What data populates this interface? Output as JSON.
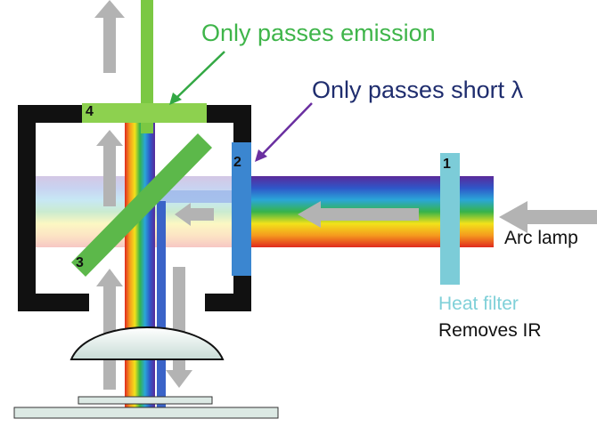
{
  "labels": {
    "callout_emission": "Only passes emission",
    "callout_short": "Only passes short λ",
    "arc_lamp": "Arc lamp",
    "heat_filter": "Heat filter",
    "removes_ir": "Removes IR"
  },
  "element_numbers": {
    "heat_filter": "1",
    "excitation_filter": "2",
    "dichroic_mirror": "3",
    "emission_filter": "4"
  },
  "colors": {
    "emission_text": "#3fb54a",
    "short_pass_text": "#1f2d6e",
    "heat_filter_text": "#7fd0d8",
    "body_text": "#111111",
    "housing": "#111111",
    "emission_filter": "#8dd14f",
    "dichroic_mirror": "#5cb84a",
    "excitation_filter": "#3b86d0",
    "heat_filter": "#7cccd8",
    "arrow_grey": "#b3b3b3",
    "emission_arrow": "#33a844",
    "short_pass_arrow": "#6a2fa0",
    "spectrum": [
      "#5a2a9a",
      "#2f56c8",
      "#2aa6d8",
      "#36b34a",
      "#f2e21a",
      "#f59a1e",
      "#e02a1e"
    ]
  }
}
